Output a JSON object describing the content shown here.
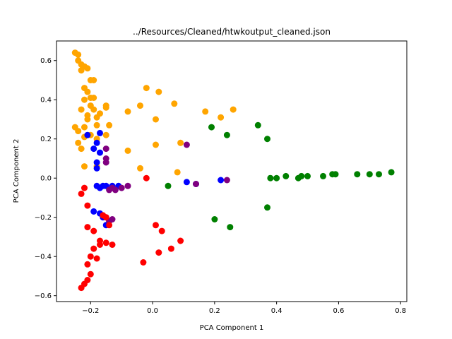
{
  "chart_data": {
    "type": "scatter",
    "title": "../Resources/Cleaned/htwkoutput_cleaned.json",
    "xlabel": "PCA Component 1",
    "ylabel": "PCA Component 2",
    "xlim": [
      -0.31,
      0.82
    ],
    "ylim": [
      -0.63,
      0.7
    ],
    "xticks": [
      -0.2,
      0.0,
      0.2,
      0.4,
      0.6,
      0.8
    ],
    "xtick_labels": [
      "−0.2",
      "0.0",
      "0.2",
      "0.4",
      "0.6",
      "0.8"
    ],
    "yticks": [
      -0.6,
      -0.4,
      -0.2,
      0.0,
      0.2,
      0.4,
      0.6
    ],
    "ytick_labels": [
      "−0.6",
      "−0.4",
      "−0.2",
      "0.0",
      "0.2",
      "0.4",
      "0.6"
    ],
    "grid": false,
    "legend": false,
    "series": [
      {
        "color": "#ffa500",
        "points": [
          [
            -0.25,
            0.64
          ],
          [
            -0.24,
            0.63
          ],
          [
            -0.24,
            0.6
          ],
          [
            -0.23,
            0.58
          ],
          [
            -0.22,
            0.57
          ],
          [
            -0.21,
            0.56
          ],
          [
            -0.23,
            0.55
          ],
          [
            -0.2,
            0.5
          ],
          [
            -0.19,
            0.5
          ],
          [
            -0.22,
            0.46
          ],
          [
            -0.21,
            0.44
          ],
          [
            -0.19,
            0.41
          ],
          [
            -0.22,
            0.4
          ],
          [
            -0.2,
            0.37
          ],
          [
            -0.15,
            0.37
          ],
          [
            -0.15,
            0.36
          ],
          [
            -0.23,
            0.35
          ],
          [
            -0.21,
            0.32
          ],
          [
            -0.19,
            0.35
          ],
          [
            -0.21,
            0.3
          ],
          [
            -0.18,
            0.31
          ],
          [
            -0.22,
            0.26
          ],
          [
            -0.25,
            0.26
          ],
          [
            -0.24,
            0.24
          ],
          [
            -0.22,
            0.21
          ],
          [
            -0.2,
            0.22
          ],
          [
            -0.18,
            0.27
          ],
          [
            -0.15,
            0.22
          ],
          [
            -0.24,
            0.18
          ],
          [
            -0.23,
            0.15
          ],
          [
            -0.18,
            0.2
          ],
          [
            -0.14,
            0.27
          ],
          [
            -0.02,
            0.46
          ],
          [
            0.02,
            0.44
          ],
          [
            -0.08,
            0.34
          ],
          [
            -0.04,
            0.37
          ],
          [
            0.01,
            0.3
          ],
          [
            0.07,
            0.38
          ],
          [
            0.17,
            0.34
          ],
          [
            0.22,
            0.31
          ],
          [
            0.26,
            0.35
          ],
          [
            0.09,
            0.18
          ],
          [
            0.01,
            0.17
          ],
          [
            -0.08,
            0.14
          ],
          [
            -0.22,
            0.06
          ],
          [
            -0.18,
            0.06
          ],
          [
            -0.04,
            0.05
          ],
          [
            0.08,
            0.03
          ],
          [
            -0.2,
            0.41
          ],
          [
            -0.17,
            0.33
          ]
        ]
      },
      {
        "color": "#008000",
        "points": [
          [
            0.34,
            0.27
          ],
          [
            0.19,
            0.26
          ],
          [
            0.24,
            0.22
          ],
          [
            0.37,
            0.2
          ],
          [
            0.38,
            0.0
          ],
          [
            0.4,
            0.0
          ],
          [
            0.43,
            0.01
          ],
          [
            0.47,
            0.0
          ],
          [
            0.48,
            0.01
          ],
          [
            0.5,
            0.01
          ],
          [
            0.55,
            0.01
          ],
          [
            0.58,
            0.02
          ],
          [
            0.59,
            0.02
          ],
          [
            0.66,
            0.02
          ],
          [
            0.7,
            0.02
          ],
          [
            0.73,
            0.02
          ],
          [
            0.77,
            0.03
          ],
          [
            0.05,
            -0.04
          ],
          [
            0.37,
            -0.15
          ],
          [
            0.2,
            -0.21
          ],
          [
            0.25,
            -0.25
          ]
        ]
      },
      {
        "color": "#0000ff",
        "points": [
          [
            -0.21,
            0.22
          ],
          [
            -0.17,
            0.23
          ],
          [
            -0.18,
            0.18
          ],
          [
            -0.19,
            0.15
          ],
          [
            -0.17,
            0.13
          ],
          [
            -0.18,
            0.08
          ],
          [
            -0.18,
            0.05
          ],
          [
            -0.18,
            -0.04
          ],
          [
            -0.17,
            -0.05
          ],
          [
            -0.15,
            -0.04
          ],
          [
            -0.13,
            -0.04
          ],
          [
            -0.11,
            -0.04
          ],
          [
            -0.19,
            -0.17
          ],
          [
            -0.17,
            -0.18
          ],
          [
            -0.16,
            -0.2
          ],
          [
            -0.15,
            -0.24
          ],
          [
            0.11,
            -0.02
          ],
          [
            0.14,
            -0.03
          ],
          [
            0.22,
            -0.01
          ],
          [
            -0.16,
            -0.04
          ]
        ]
      },
      {
        "color": "#800080",
        "points": [
          [
            -0.15,
            0.15
          ],
          [
            -0.15,
            0.1
          ],
          [
            -0.15,
            0.08
          ],
          [
            0.11,
            0.17
          ],
          [
            -0.13,
            -0.05
          ],
          [
            -0.12,
            -0.06
          ],
          [
            -0.1,
            -0.05
          ],
          [
            -0.08,
            -0.04
          ],
          [
            -0.14,
            -0.06
          ],
          [
            -0.15,
            -0.2
          ],
          [
            -0.14,
            -0.22
          ],
          [
            -0.13,
            -0.21
          ],
          [
            0.14,
            -0.03
          ],
          [
            0.24,
            -0.01
          ]
        ]
      },
      {
        "color": "#ff0000",
        "points": [
          [
            -0.02,
            0.0
          ],
          [
            -0.22,
            -0.05
          ],
          [
            -0.23,
            -0.08
          ],
          [
            -0.21,
            -0.14
          ],
          [
            -0.16,
            -0.19
          ],
          [
            -0.15,
            -0.2
          ],
          [
            -0.21,
            -0.25
          ],
          [
            -0.19,
            -0.27
          ],
          [
            -0.14,
            -0.24
          ],
          [
            -0.17,
            -0.32
          ],
          [
            -0.17,
            -0.34
          ],
          [
            -0.19,
            -0.36
          ],
          [
            -0.2,
            -0.4
          ],
          [
            -0.18,
            -0.41
          ],
          [
            -0.21,
            -0.44
          ],
          [
            -0.2,
            -0.49
          ],
          [
            -0.21,
            -0.52
          ],
          [
            -0.22,
            -0.54
          ],
          [
            -0.23,
            -0.56
          ],
          [
            -0.13,
            -0.34
          ],
          [
            0.01,
            -0.24
          ],
          [
            0.03,
            -0.27
          ],
          [
            0.02,
            -0.38
          ],
          [
            -0.03,
            -0.43
          ],
          [
            0.06,
            -0.36
          ],
          [
            0.09,
            -0.32
          ],
          [
            -0.15,
            -0.33
          ]
        ]
      }
    ]
  }
}
